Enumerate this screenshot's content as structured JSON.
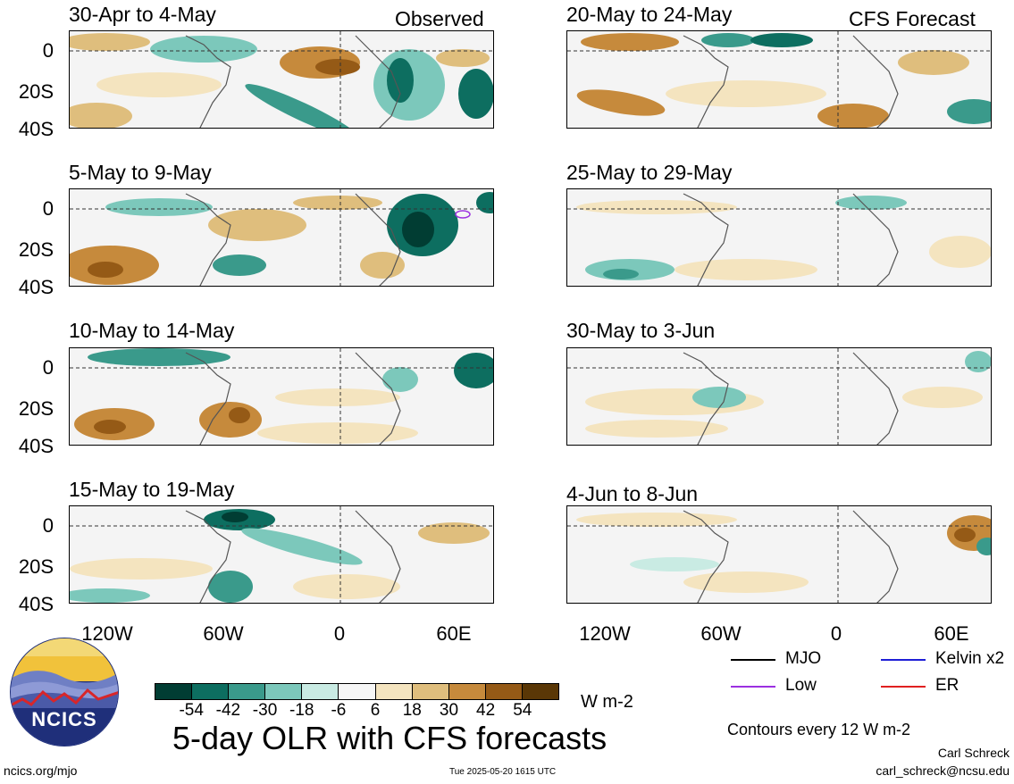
{
  "header": {
    "observed_label": "Observed",
    "forecast_label": "CFS Forecast"
  },
  "panels": [
    {
      "title": "30-Apr to 4-May",
      "group": "observed"
    },
    {
      "title": "5-May to 9-May",
      "group": "observed"
    },
    {
      "title": "10-May to 14-May",
      "group": "observed"
    },
    {
      "title": "15-May to 19-May",
      "group": "observed"
    },
    {
      "title": "20-May to 24-May",
      "group": "forecast"
    },
    {
      "title": "25-May to 29-May",
      "group": "forecast"
    },
    {
      "title": "30-May to 3-Jun",
      "group": "forecast"
    },
    {
      "title": "4-Jun to 8-Jun",
      "group": "forecast"
    }
  ],
  "axes": {
    "lat_labels": [
      "0",
      "20S",
      "40S"
    ],
    "lon_labels": [
      "120W",
      "60W",
      "0",
      "60E"
    ]
  },
  "colorbar": {
    "labels": [
      "-54",
      "-42",
      "-30",
      "-18",
      "-6",
      "6",
      "18",
      "30",
      "42",
      "54"
    ],
    "colors": [
      "#013d33",
      "#0d6e60",
      "#3a9a8b",
      "#7cc8bb",
      "#c9ebe3",
      "#f6f6f6",
      "#f4e4bf",
      "#dfbe7d",
      "#c68a3c",
      "#955a16",
      "#5a3706"
    ],
    "units": "W m-2"
  },
  "legend": {
    "items": [
      {
        "label": "MJO",
        "color": "#000000"
      },
      {
        "label": "Kelvin x2",
        "color": "#1f1fd6"
      },
      {
        "label": "Low",
        "color": "#9b30e0"
      },
      {
        "label": "ER",
        "color": "#e02020"
      }
    ],
    "contours_note": "Contours every 12 W m-2"
  },
  "footer": {
    "main_title": "5-day OLR with CFS forecasts",
    "logo_text": "NCICS",
    "url": "ncics.org/mjo",
    "timestamp": "Tue 2025-05-20 1615 UTC",
    "author": "Carl Schreck",
    "email": "carl_schreck@ncsu.edu"
  }
}
